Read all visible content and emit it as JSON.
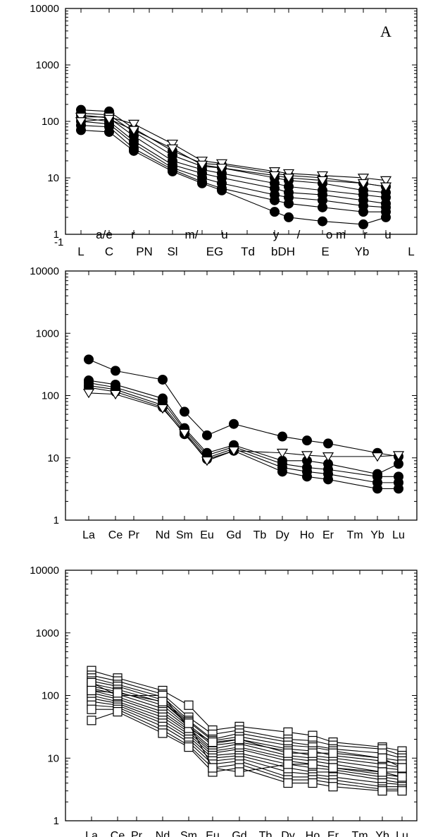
{
  "chart_data": [
    {
      "type": "line",
      "scale": "log",
      "ylim": [
        1,
        10000
      ],
      "panel_label": "A",
      "grid": false,
      "y_ticks": [
        {
          "value": 10000,
          "label": "10000"
        },
        {
          "value": 1000,
          "label": "1000"
        },
        {
          "value": 100,
          "label": "100"
        },
        {
          "value": 10,
          "label": "10"
        },
        {
          "value": 1,
          "label": "1"
        }
      ],
      "categories": [
        "L",
        "C",
        "P",
        "N",
        "S",
        "E",
        "G",
        "T",
        "D",
        "H",
        "E",
        "T",
        "Yb",
        "L"
      ],
      "category_labels": [
        "L",
        "C",
        "PN",
        "Sl",
        "EG",
        "Td",
        "bDH",
        "E",
        "Yb",
        "L"
      ],
      "overlap_labels": [
        "a/e",
        "r",
        "m/",
        "u",
        "y",
        "/",
        "o m",
        "r",
        "u"
      ],
      "series": [
        {
          "marker": "circle",
          "values": [
            160,
            150,
            75,
            null,
            30,
            18,
            17,
            null,
            12,
            11,
            10,
            null,
            8,
            7
          ]
        },
        {
          "marker": "circle",
          "values": [
            140,
            130,
            65,
            null,
            25,
            16,
            15,
            null,
            10,
            9,
            8,
            null,
            6,
            5.5
          ]
        },
        {
          "marker": "circle",
          "values": [
            130,
            115,
            55,
            null,
            20,
            14,
            12,
            null,
            8,
            7,
            6,
            null,
            5,
            4.5
          ]
        },
        {
          "marker": "circle",
          "values": [
            115,
            100,
            45,
            null,
            17,
            12,
            10,
            null,
            6.5,
            5.5,
            5,
            null,
            4,
            3.5
          ]
        },
        {
          "marker": "circle",
          "values": [
            100,
            90,
            40,
            null,
            15,
            10,
            8,
            null,
            5,
            4.5,
            4,
            null,
            3.2,
            3
          ]
        },
        {
          "marker": "circle",
          "values": [
            85,
            80,
            33,
            null,
            14,
            8.5,
            6.5,
            null,
            4,
            3.5,
            3,
            null,
            2.5,
            2.5
          ]
        },
        {
          "marker": "circle",
          "values": [
            70,
            65,
            30,
            null,
            13,
            8,
            6,
            null,
            2.5,
            2,
            1.7,
            null,
            1.5,
            2
          ]
        },
        {
          "marker": "triangle",
          "values": [
            120,
            120,
            90,
            null,
            40,
            20,
            18,
            null,
            13,
            12,
            11,
            null,
            10,
            9
          ]
        },
        {
          "marker": "triangle",
          "values": [
            100,
            110,
            70,
            null,
            33,
            17,
            15,
            null,
            11,
            10,
            9,
            null,
            8,
            7
          ]
        }
      ]
    },
    {
      "type": "line",
      "scale": "log",
      "ylim": [
        1,
        10000
      ],
      "grid": false,
      "y_ticks": [
        {
          "value": 10000,
          "label": "10000"
        },
        {
          "value": 1000,
          "label": "1000"
        },
        {
          "value": 100,
          "label": "100"
        },
        {
          "value": 10,
          "label": "10"
        },
        {
          "value": 1,
          "label": "1"
        }
      ],
      "categories": [
        "La",
        "Ce",
        "Pr",
        "Nd",
        "Sm",
        "Eu",
        "Gd",
        "Tb",
        "Dy",
        "Ho",
        "Er",
        "Tm",
        "Yb",
        "Lu"
      ],
      "tick_labels": [
        "La",
        "Ce",
        "Pr",
        "Nd",
        "Sm",
        "Eu",
        "Gd",
        "Tb",
        "Dy",
        "Ho",
        "Er",
        "Tm",
        "Yb",
        "Lu"
      ],
      "series": [
        {
          "marker": "circle",
          "values": [
            380,
            250,
            null,
            180,
            55,
            23,
            35,
            null,
            22,
            19,
            17,
            null,
            12,
            10.5
          ]
        },
        {
          "marker": "circle",
          "values": [
            175,
            150,
            null,
            90,
            30,
            12,
            16,
            null,
            9,
            9,
            8,
            null,
            5.5,
            8
          ]
        },
        {
          "marker": "circle",
          "values": [
            160,
            135,
            null,
            80,
            28,
            11,
            15,
            null,
            8,
            7,
            6.5,
            null,
            5,
            5
          ]
        },
        {
          "marker": "circle",
          "values": [
            145,
            125,
            null,
            70,
            26,
            10,
            14,
            null,
            7,
            6,
            5.5,
            null,
            4,
            4
          ]
        },
        {
          "marker": "circle",
          "values": [
            135,
            115,
            null,
            65,
            24,
            9.5,
            13,
            null,
            6,
            5,
            4.5,
            null,
            3.2,
            3.2
          ]
        },
        {
          "marker": "triangle",
          "values": [
            110,
            105,
            null,
            62,
            25,
            9,
            13,
            null,
            12,
            11,
            10.5,
            null,
            10.5,
            11
          ]
        }
      ]
    },
    {
      "type": "line",
      "scale": "log",
      "ylim": [
        1,
        10000
      ],
      "grid": false,
      "y_ticks": [
        {
          "value": 10000,
          "label": "10000"
        },
        {
          "value": 1000,
          "label": "1000"
        },
        {
          "value": 100,
          "label": "100"
        },
        {
          "value": 10,
          "label": "10"
        },
        {
          "value": 1,
          "label": "1"
        }
      ],
      "categories": [
        "La",
        "Ce",
        "Pr",
        "Nd",
        "Sm",
        "Eu",
        "Gd",
        "Tb",
        "Dy",
        "Ho",
        "Er",
        "Tm",
        "Yb",
        "Lu"
      ],
      "tick_labels": [
        "La",
        "Ce",
        "Pr",
        "Nd",
        "Sm",
        "Eu",
        "Gd",
        "Tb",
        "Dy",
        "Ho",
        "Er",
        "Tm",
        "Yb",
        "Lu"
      ],
      "series": [
        {
          "marker": "square",
          "values": [
            250,
            190,
            null,
            120,
            70,
            28,
            32,
            null,
            26,
            23,
            18,
            null,
            15,
            13
          ]
        },
        {
          "marker": "square",
          "values": [
            210,
            170,
            null,
            105,
            45,
            24,
            28,
            null,
            20,
            19,
            16,
            null,
            14,
            11
          ]
        },
        {
          "marker": "square",
          "values": [
            190,
            150,
            null,
            95,
            40,
            20,
            25,
            null,
            18,
            16,
            14,
            null,
            12,
            10
          ]
        },
        {
          "marker": "square",
          "values": [
            170,
            140,
            null,
            85,
            38,
            19,
            22,
            null,
            16,
            15,
            13,
            null,
            10,
            9
          ]
        },
        {
          "marker": "square",
          "values": [
            155,
            125,
            null,
            78,
            34,
            17,
            20,
            null,
            14,
            13,
            11,
            null,
            9,
            8
          ]
        },
        {
          "marker": "square",
          "values": [
            140,
            115,
            null,
            70,
            32,
            16,
            18,
            null,
            13,
            11,
            10,
            null,
            8,
            7
          ]
        },
        {
          "marker": "square",
          "values": [
            130,
            105,
            null,
            62,
            30,
            14,
            17,
            null,
            11,
            10,
            9,
            null,
            7,
            6.5
          ]
        },
        {
          "marker": "square",
          "values": [
            120,
            95,
            null,
            55,
            28,
            13,
            15,
            null,
            10,
            9,
            8,
            null,
            6,
            6
          ]
        },
        {
          "marker": "square",
          "values": [
            110,
            88,
            null,
            50,
            26,
            12,
            14,
            null,
            9,
            8,
            7,
            null,
            5.5,
            5
          ]
        },
        {
          "marker": "square",
          "values": [
            100,
            80,
            null,
            45,
            24,
            11,
            12,
            null,
            8,
            7,
            6.5,
            null,
            5,
            4.5
          ]
        },
        {
          "marker": "square",
          "values": [
            90,
            75,
            null,
            40,
            22,
            10,
            11,
            null,
            7,
            6,
            6,
            null,
            4.5,
            4
          ]
        },
        {
          "marker": "square",
          "values": [
            80,
            70,
            null,
            36,
            20,
            9,
            10,
            null,
            6,
            5.5,
            5,
            null,
            4,
            3.8
          ]
        },
        {
          "marker": "square",
          "values": [
            70,
            65,
            null,
            32,
            18,
            8,
            9,
            null,
            5,
            5,
            4.5,
            null,
            3.5,
            3.5
          ]
        },
        {
          "marker": "square",
          "values": [
            60,
            60,
            null,
            28,
            16,
            7,
            8,
            null,
            4.5,
            4.5,
            4,
            null,
            3.2,
            3.2
          ]
        },
        {
          "marker": "square",
          "values": [
            40,
            55,
            null,
            25,
            15,
            6,
            7,
            null,
            4,
            4,
            3.5,
            null,
            3,
            3
          ]
        },
        {
          "marker": "square",
          "values": [
            160,
            100,
            null,
            100,
            30,
            18,
            20,
            null,
            12,
            12,
            12,
            null,
            10,
            7
          ]
        },
        {
          "marker": "square",
          "values": [
            120,
            110,
            null,
            80,
            36,
            7,
            6,
            null,
            8,
            8,
            7,
            null,
            6,
            5
          ]
        }
      ]
    }
  ]
}
